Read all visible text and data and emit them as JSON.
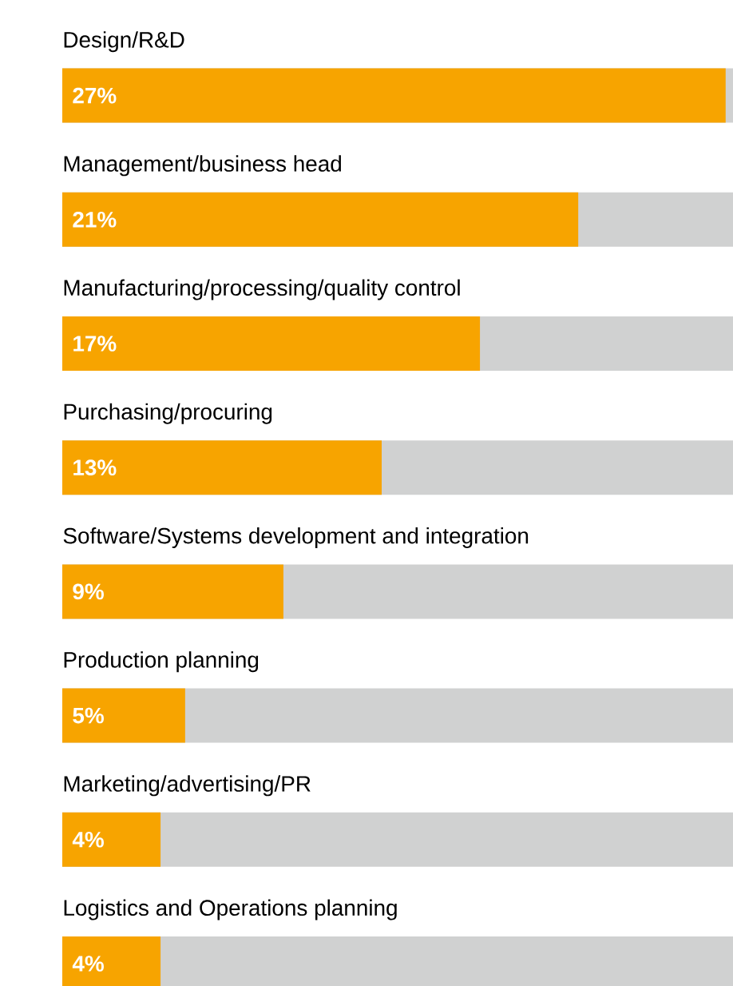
{
  "chart_data": {
    "type": "bar",
    "orientation": "horizontal",
    "categories": [
      "Design/R&D",
      "Management/business head",
      "Manufacturing/processing/quality control",
      "Purchasing/procuring",
      "Software/Systems development and integration",
      "Production planning",
      "Marketing/advertising/PR",
      "Logistics and Operations planning"
    ],
    "values": [
      27,
      21,
      17,
      13,
      9,
      5,
      4,
      4
    ],
    "value_labels": [
      "27%",
      "21%",
      "17%",
      "13%",
      "9%",
      "5%",
      "4%",
      "4%"
    ],
    "color": "#f7a400",
    "xlim": [
      0,
      27.3
    ]
  }
}
